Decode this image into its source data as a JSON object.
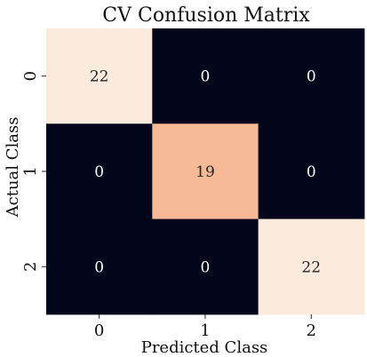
{
  "chart_data": {
    "type": "heatmap",
    "title": "CV Confusion Matrix",
    "xlabel": "Predicted Class",
    "ylabel": "Actual Class",
    "x_categories": [
      "0",
      "1",
      "2"
    ],
    "y_categories": [
      "0",
      "1",
      "2"
    ],
    "values": [
      [
        22,
        0,
        0
      ],
      [
        0,
        19,
        0
      ],
      [
        0,
        0,
        22
      ]
    ],
    "value_labels": [
      [
        "22",
        "0",
        "0"
      ],
      [
        "0",
        "19",
        "0"
      ],
      [
        "0",
        "0",
        "22"
      ]
    ],
    "colorbar": false,
    "colors": {
      "low": "#03051a",
      "mid": "#f5b996",
      "high": "#faebdd",
      "text_on_dark": "#ffffff",
      "text_on_light": "#262626"
    }
  }
}
